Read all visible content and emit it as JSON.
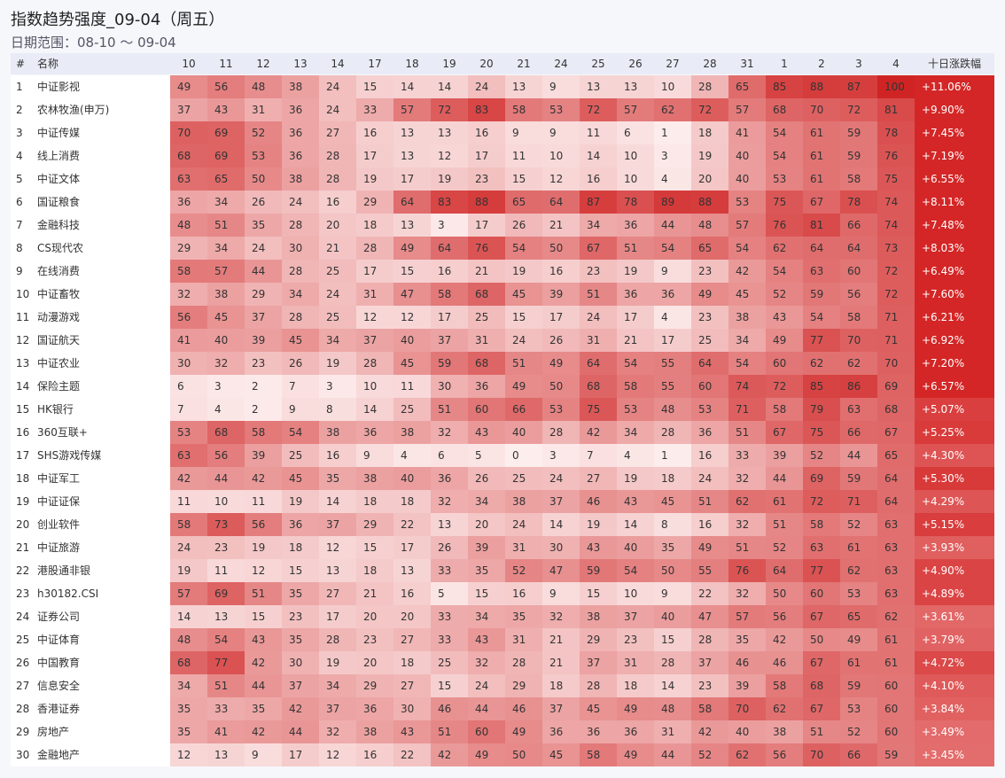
{
  "title": "指数趋势强度_09-04（周五）",
  "subtitle": "日期范围：08-10 ～ 09-04",
  "table": {
    "header": {
      "rank": "#",
      "name": "名称",
      "days": [
        "10",
        "11",
        "12",
        "13",
        "14",
        "17",
        "18",
        "19",
        "20",
        "21",
        "24",
        "25",
        "26",
        "27",
        "28",
        "31",
        "1",
        "2",
        "3",
        "4"
      ],
      "change": "十日涨跌幅"
    },
    "rows": [
      {
        "rank": "1",
        "name": "中证影视",
        "values": [
          49,
          56,
          48,
          38,
          24,
          15,
          14,
          14,
          24,
          13,
          9,
          13,
          13,
          10,
          28,
          65,
          85,
          88,
          87,
          100
        ],
        "change": "+11.06%"
      },
      {
        "rank": "2",
        "name": "农林牧渔(申万)",
        "values": [
          37,
          43,
          31,
          36,
          24,
          33,
          57,
          72,
          83,
          58,
          53,
          72,
          57,
          62,
          72,
          57,
          68,
          70,
          72,
          81
        ],
        "change": "+9.90%"
      },
      {
        "rank": "3",
        "name": "中证传媒",
        "values": [
          70,
          69,
          52,
          36,
          27,
          16,
          13,
          13,
          16,
          9,
          9,
          11,
          6,
          1,
          18,
          41,
          54,
          61,
          59,
          78
        ],
        "change": "+7.45%"
      },
      {
        "rank": "4",
        "name": "线上消费",
        "values": [
          68,
          69,
          53,
          36,
          28,
          17,
          13,
          12,
          17,
          11,
          10,
          14,
          10,
          3,
          19,
          40,
          54,
          61,
          59,
          76
        ],
        "change": "+7.19%"
      },
      {
        "rank": "5",
        "name": "中证文体",
        "values": [
          63,
          65,
          50,
          38,
          28,
          19,
          17,
          19,
          23,
          15,
          12,
          16,
          10,
          4,
          20,
          40,
          53,
          61,
          58,
          75
        ],
        "change": "+6.55%"
      },
      {
        "rank": "6",
        "name": "国证粮食",
        "values": [
          36,
          34,
          26,
          24,
          16,
          29,
          64,
          83,
          88,
          65,
          64,
          87,
          78,
          89,
          88,
          53,
          75,
          67,
          78,
          74
        ],
        "change": "+8.11%"
      },
      {
        "rank": "7",
        "name": "金融科技",
        "values": [
          48,
          51,
          35,
          28,
          20,
          18,
          13,
          3,
          17,
          26,
          21,
          34,
          36,
          44,
          48,
          57,
          76,
          81,
          66,
          74
        ],
        "change": "+7.48%"
      },
      {
        "rank": "8",
        "name": "CS现代农",
        "values": [
          29,
          34,
          24,
          30,
          21,
          28,
          49,
          64,
          76,
          54,
          50,
          67,
          51,
          54,
          65,
          54,
          62,
          64,
          64,
          73
        ],
        "change": "+8.03%"
      },
      {
        "rank": "9",
        "name": "在线消费",
        "values": [
          58,
          57,
          44,
          28,
          25,
          17,
          15,
          16,
          21,
          19,
          16,
          23,
          19,
          9,
          23,
          42,
          54,
          63,
          60,
          72
        ],
        "change": "+6.49%"
      },
      {
        "rank": "10",
        "name": "中证畜牧",
        "values": [
          32,
          38,
          29,
          34,
          24,
          31,
          47,
          58,
          68,
          45,
          39,
          51,
          36,
          36,
          49,
          45,
          52,
          59,
          56,
          72
        ],
        "change": "+7.60%"
      },
      {
        "rank": "11",
        "name": "动漫游戏",
        "values": [
          56,
          45,
          37,
          28,
          25,
          12,
          12,
          17,
          25,
          15,
          17,
          24,
          17,
          4,
          23,
          38,
          43,
          54,
          58,
          71
        ],
        "change": "+6.21%"
      },
      {
        "rank": "12",
        "name": "国证航天",
        "values": [
          41,
          40,
          39,
          45,
          34,
          37,
          40,
          37,
          31,
          24,
          26,
          31,
          21,
          17,
          25,
          34,
          49,
          77,
          70,
          71
        ],
        "change": "+6.92%"
      },
      {
        "rank": "13",
        "name": "中证农业",
        "values": [
          30,
          32,
          23,
          26,
          19,
          28,
          45,
          59,
          68,
          51,
          49,
          64,
          54,
          55,
          64,
          54,
          60,
          62,
          62,
          70
        ],
        "change": "+7.20%"
      },
      {
        "rank": "14",
        "name": "保险主题",
        "values": [
          6,
          3,
          2,
          7,
          3,
          10,
          11,
          30,
          36,
          49,
          50,
          68,
          58,
          55,
          60,
          74,
          72,
          85,
          86,
          69
        ],
        "change": "+6.57%"
      },
      {
        "rank": "15",
        "name": "HK银行",
        "values": [
          7,
          4,
          2,
          9,
          8,
          14,
          25,
          51,
          60,
          66,
          53,
          75,
          53,
          48,
          53,
          71,
          58,
          79,
          63,
          68
        ],
        "change": "+5.07%"
      },
      {
        "rank": "16",
        "name": "360互联+",
        "values": [
          53,
          68,
          58,
          54,
          38,
          36,
          38,
          32,
          43,
          40,
          28,
          42,
          34,
          28,
          36,
          51,
          67,
          75,
          66,
          67
        ],
        "change": "+5.25%"
      },
      {
        "rank": "17",
        "name": "SHS游戏传媒",
        "values": [
          63,
          56,
          39,
          25,
          16,
          9,
          4,
          6,
          5,
          0,
          3,
          7,
          4,
          1,
          16,
          33,
          39,
          52,
          44,
          65
        ],
        "change": "+4.30%"
      },
      {
        "rank": "18",
        "name": "中证军工",
        "values": [
          42,
          44,
          42,
          45,
          35,
          38,
          40,
          36,
          26,
          25,
          24,
          27,
          19,
          18,
          24,
          32,
          44,
          69,
          59,
          64
        ],
        "change": "+5.30%"
      },
      {
        "rank": "19",
        "name": "中证证保",
        "values": [
          11,
          10,
          11,
          19,
          14,
          18,
          18,
          32,
          34,
          38,
          37,
          46,
          43,
          45,
          51,
          62,
          61,
          72,
          71,
          64
        ],
        "change": "+4.29%"
      },
      {
        "rank": "20",
        "name": "创业软件",
        "values": [
          58,
          73,
          56,
          36,
          37,
          29,
          22,
          13,
          20,
          24,
          14,
          19,
          14,
          8,
          16,
          32,
          51,
          58,
          52,
          63
        ],
        "change": "+5.15%"
      },
      {
        "rank": "21",
        "name": "中证旅游",
        "values": [
          24,
          23,
          19,
          18,
          12,
          15,
          17,
          26,
          39,
          31,
          30,
          43,
          40,
          35,
          49,
          51,
          52,
          63,
          61,
          63
        ],
        "change": "+3.93%"
      },
      {
        "rank": "22",
        "name": "港股通非银",
        "values": [
          19,
          11,
          12,
          15,
          13,
          18,
          13,
          33,
          35,
          52,
          47,
          59,
          54,
          50,
          55,
          76,
          64,
          77,
          62,
          63
        ],
        "change": "+4.90%"
      },
      {
        "rank": "23",
        "name": "h30182.CSI",
        "values": [
          57,
          69,
          51,
          35,
          27,
          21,
          16,
          5,
          15,
          16,
          9,
          15,
          10,
          9,
          22,
          32,
          50,
          60,
          53,
          63
        ],
        "change": "+4.89%"
      },
      {
        "rank": "24",
        "name": "证券公司",
        "values": [
          14,
          13,
          15,
          23,
          17,
          20,
          20,
          33,
          34,
          35,
          32,
          38,
          37,
          40,
          47,
          57,
          56,
          67,
          65,
          62
        ],
        "change": "+3.61%"
      },
      {
        "rank": "25",
        "name": "中证体育",
        "values": [
          48,
          54,
          43,
          35,
          28,
          23,
          27,
          33,
          43,
          31,
          21,
          29,
          23,
          15,
          28,
          35,
          42,
          50,
          49,
          61
        ],
        "change": "+3.79%"
      },
      {
        "rank": "26",
        "name": "中国教育",
        "values": [
          68,
          77,
          42,
          30,
          19,
          20,
          18,
          25,
          32,
          28,
          21,
          37,
          31,
          28,
          37,
          46,
          46,
          67,
          61,
          61
        ],
        "change": "+4.72%"
      },
      {
        "rank": "27",
        "name": "信息安全",
        "values": [
          34,
          51,
          44,
          37,
          34,
          29,
          27,
          15,
          24,
          29,
          18,
          28,
          18,
          14,
          23,
          39,
          58,
          68,
          59,
          60
        ],
        "change": "+4.10%"
      },
      {
        "rank": "28",
        "name": "香港证券",
        "values": [
          35,
          33,
          35,
          42,
          37,
          36,
          30,
          46,
          44,
          46,
          37,
          45,
          49,
          48,
          58,
          70,
          62,
          67,
          53,
          60
        ],
        "change": "+3.84%"
      },
      {
        "rank": "29",
        "name": "房地产",
        "values": [
          35,
          41,
          42,
          44,
          32,
          38,
          43,
          51,
          60,
          49,
          36,
          36,
          36,
          31,
          42,
          40,
          38,
          51,
          52,
          60
        ],
        "change": "+3.49%"
      },
      {
        "rank": "30",
        "name": "金融地产",
        "values": [
          12,
          13,
          9,
          17,
          12,
          16,
          22,
          42,
          49,
          50,
          45,
          58,
          49,
          44,
          52,
          62,
          56,
          70,
          66,
          59
        ],
        "change": "+3.45%"
      }
    ]
  }
}
